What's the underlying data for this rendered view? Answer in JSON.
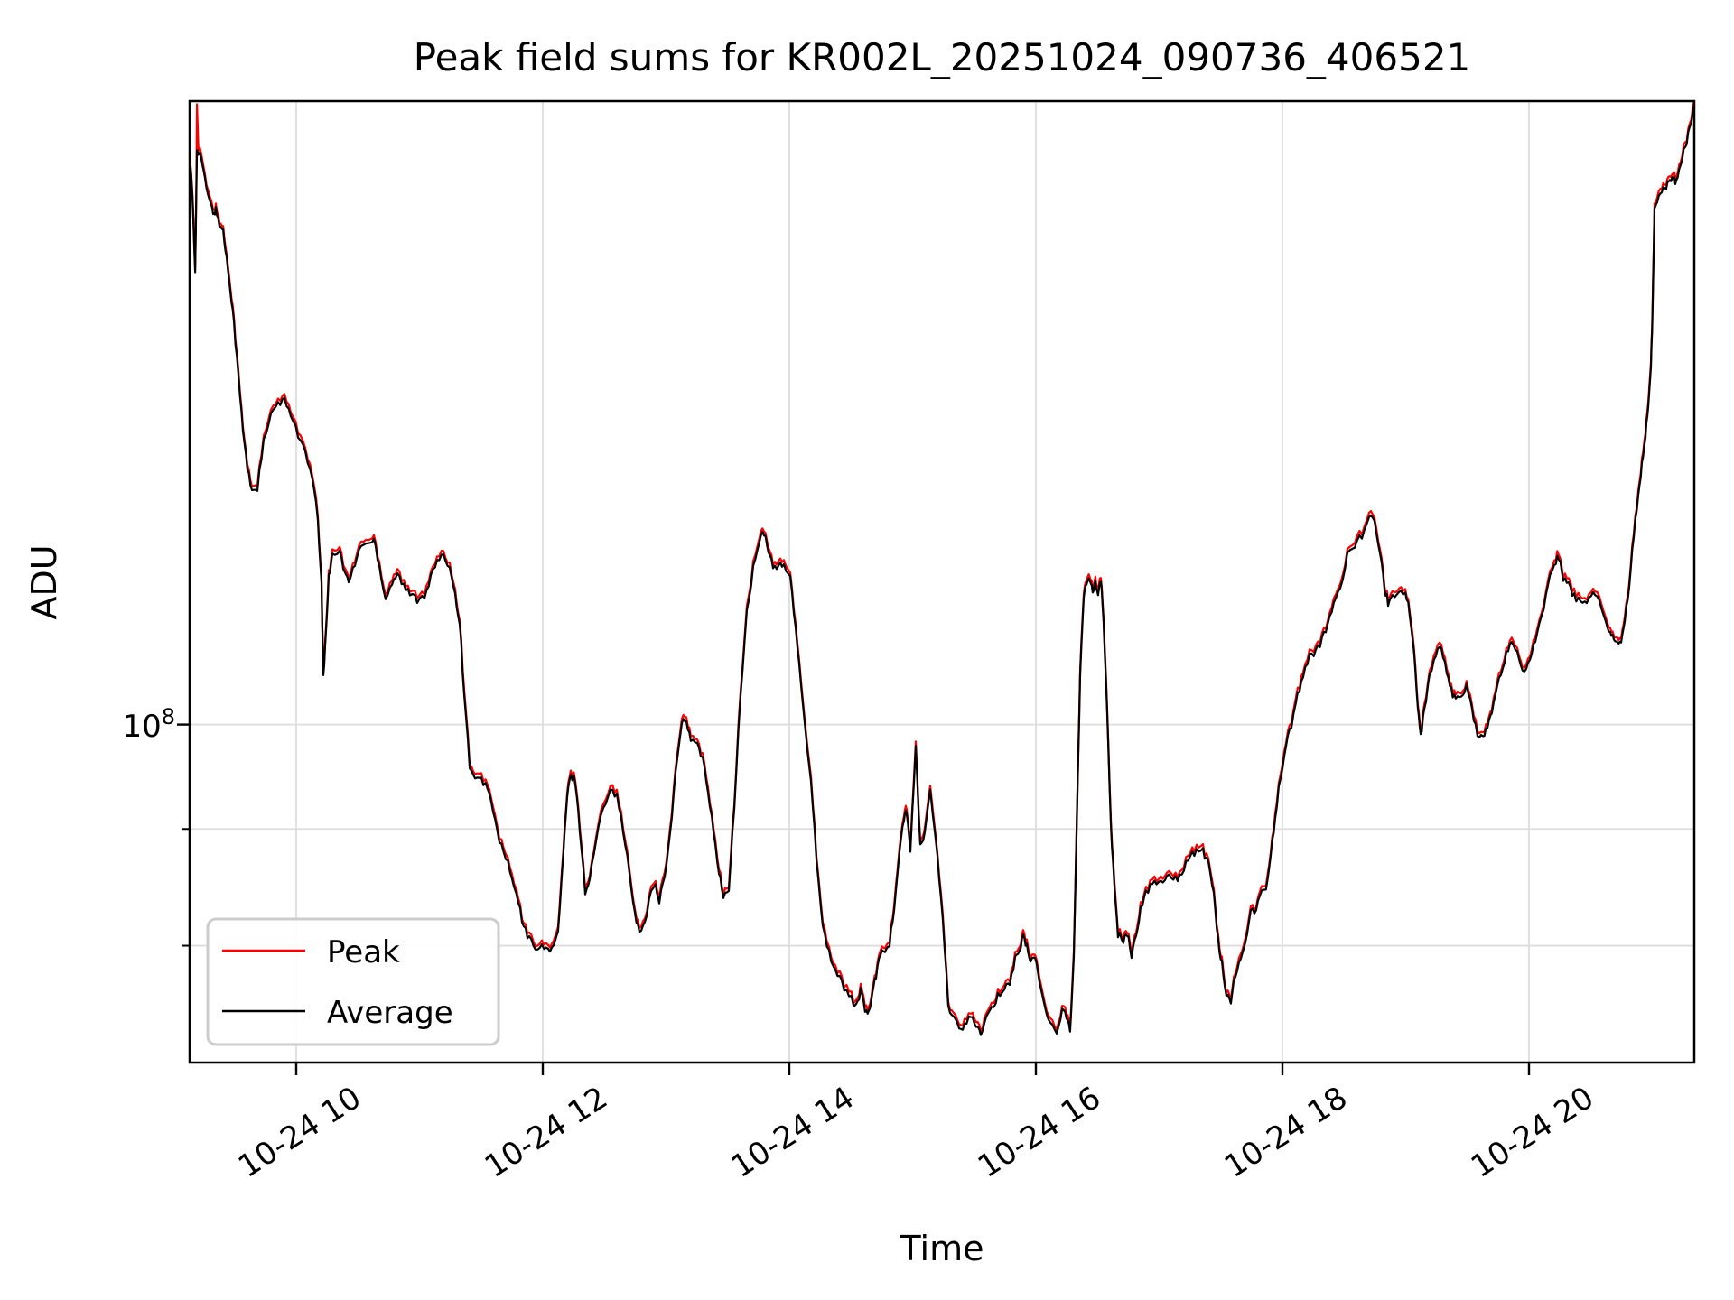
{
  "window": {
    "background": "#ffffff"
  },
  "chart_data": {
    "type": "line",
    "title": "Peak field sums for KR002L_20251024_090736_406521",
    "xlabel": "Time",
    "ylabel": "ADU",
    "yscale": "log",
    "grid": true,
    "grid_color": "#dddddd",
    "frame_color": "#000000",
    "xlim_hours": [
      9.1355,
      21.3407
    ],
    "ylim": [
      71100000.0,
      187600000.0
    ],
    "x_tick_hours": [
      10,
      12,
      14,
      16,
      18,
      20
    ],
    "x_tick_labels": [
      "10-24 10",
      "10-24 12",
      "10-24 14",
      "10-24 16",
      "10-24 18",
      "10-24 20"
    ],
    "x_tick_rotation_deg": -33,
    "y_major_tick": {
      "value": 100000000.0,
      "base": "10",
      "exp": "8"
    },
    "y_minor_gridlines": [
      90000000.0,
      80000000.0
    ],
    "legend": {
      "position": "lower left",
      "border_color": "#cccccc",
      "fill": "#ffffff"
    },
    "noise_pct": 0.2,
    "series": [
      {
        "name": "Peak",
        "color": "#ff0000",
        "derived": "average_times_factor",
        "factor_vs_average": 1.004,
        "spike": {
          "t": 9.195,
          "value": 187000000.0
        }
      },
      {
        "name": "Average",
        "color": "#000000",
        "x_hours": [
          9.129,
          9.158,
          9.18,
          9.195,
          9.231,
          9.26,
          9.297,
          9.326,
          9.348,
          9.377,
          9.407,
          9.436,
          9.465,
          9.495,
          9.531,
          9.568,
          9.604,
          9.641,
          9.685,
          9.736,
          9.795,
          9.853,
          9.905,
          9.956,
          10.015,
          10.073,
          10.132,
          10.176,
          10.205,
          10.22,
          10.242,
          10.264,
          10.293,
          10.352,
          10.396,
          10.425,
          10.476,
          10.527,
          10.586,
          10.63,
          10.674,
          10.725,
          10.777,
          10.821,
          10.872,
          10.923,
          10.982,
          11.04,
          11.092,
          11.143,
          11.194,
          11.245,
          11.289,
          11.326,
          11.363,
          11.407,
          11.451,
          11.502,
          11.553,
          11.597,
          11.648,
          11.7,
          11.751,
          11.802,
          11.846,
          11.89,
          11.941,
          11.993,
          12.044,
          12.088,
          12.124,
          12.168,
          12.198,
          12.227,
          12.264,
          12.3,
          12.344,
          12.381,
          12.432,
          12.491,
          12.549,
          12.601,
          12.652,
          12.703,
          12.747,
          12.784,
          12.828,
          12.879,
          12.916,
          12.945,
          12.989,
          13.033,
          13.077,
          13.128,
          13.165,
          13.201,
          13.253,
          13.297,
          13.341,
          13.385,
          13.429,
          13.465,
          13.509,
          13.553,
          13.604,
          13.656,
          13.707,
          13.758,
          13.795,
          13.831,
          13.868,
          13.912,
          13.956,
          14.007,
          14.051,
          14.095,
          14.176,
          14.22,
          14.271,
          14.322,
          14.374,
          14.425,
          14.484,
          14.542,
          14.579,
          14.615,
          14.645,
          14.674,
          14.703,
          14.74,
          14.776,
          14.813,
          14.85,
          14.894,
          14.93,
          14.952,
          14.982,
          15.026,
          15.062,
          15.099,
          15.143,
          15.201,
          15.245,
          15.289,
          15.333,
          15.377,
          15.421,
          15.472,
          15.516,
          15.553,
          15.597,
          15.641,
          15.692,
          15.744,
          15.788,
          15.832,
          15.868,
          15.897,
          15.927,
          15.956,
          15.993,
          16.029,
          16.073,
          16.117,
          16.169,
          16.213,
          16.249,
          16.278,
          16.308,
          16.337,
          16.359,
          16.388,
          16.41,
          16.439,
          16.461,
          16.483,
          16.505,
          16.527,
          16.549,
          16.579,
          16.608,
          16.637,
          16.666,
          16.71,
          16.74,
          16.776,
          16.813,
          16.85,
          16.893,
          16.945,
          16.996,
          17.047,
          17.098,
          17.15,
          17.201,
          17.252,
          17.303,
          17.355,
          17.399,
          17.443,
          17.479,
          17.509,
          17.545,
          17.582,
          17.618,
          17.662,
          17.699,
          17.743,
          17.787,
          17.831,
          17.867,
          17.904,
          17.941,
          17.985,
          18.029,
          18.073,
          18.124,
          18.168,
          18.22,
          18.271,
          18.322,
          18.366,
          18.417,
          18.469,
          18.527,
          18.586,
          18.645,
          18.703,
          18.747,
          18.791,
          18.828,
          18.857,
          18.894,
          18.945,
          18.996,
          19.033,
          19.069,
          19.099,
          19.121,
          19.15,
          19.194,
          19.245,
          19.289,
          19.333,
          19.37,
          19.406,
          19.45,
          19.494,
          19.538,
          19.582,
          19.626,
          19.663,
          19.699,
          19.743,
          19.787,
          19.831,
          19.875,
          19.919,
          19.963,
          20.007,
          20.051,
          20.102,
          20.154,
          20.205,
          20.242,
          20.278,
          20.322,
          20.366,
          20.418,
          20.469,
          20.52,
          20.571,
          20.623,
          20.659,
          20.689,
          20.718,
          20.747,
          20.777,
          20.813,
          20.85,
          20.886,
          20.916,
          20.945,
          20.967,
          20.989,
          21.003,
          21.018,
          21.04,
          21.077,
          21.113,
          21.143,
          21.172,
          21.194,
          21.23,
          21.267,
          21.304,
          21.34
        ],
        "values": [
          180000000.0,
          170000000.0,
          157800000.0,
          179000000.0,
          177200000.0,
          173000000.0,
          169500000.0,
          167700000.0,
          168000000.0,
          165800000.0,
          164500000.0,
          160000000.0,
          155500000.0,
          150000000.0,
          142000000.0,
          134500000.0,
          129500000.0,
          126700000.0,
          127000000.0,
          133000000.0,
          136500000.0,
          138300000.0,
          138500000.0,
          137000000.0,
          134000000.0,
          131500000.0,
          128000000.0,
          123000000.0,
          115000000.0,
          104700000.0,
          110000000.0,
          116000000.0,
          119000000.0,
          119000000.0,
          116500000.0,
          115500000.0,
          117500000.0,
          120000000.0,
          120000000.0,
          120500000.0,
          117500000.0,
          113500000.0,
          115500000.0,
          116500000.0,
          115000000.0,
          114000000.0,
          113500000.0,
          114000000.0,
          116000000.0,
          118000000.0,
          118300000.0,
          117500000.0,
          114000000.0,
          111000000.0,
          103000000.0,
          96000000.0,
          94500000.0,
          94500000.0,
          94000000.0,
          91500000.0,
          89000000.0,
          87500000.0,
          85500000.0,
          83500000.0,
          81500000.0,
          80500000.0,
          80000000.0,
          79800000.0,
          79700000.0,
          80000000.0,
          81000000.0,
          88000000.0,
          93000000.0,
          95000000.0,
          94500000.0,
          90000000.0,
          84500000.0,
          85500000.0,
          89000000.0,
          92000000.0,
          94000000.0,
          93000000.0,
          90000000.0,
          86000000.0,
          82500000.0,
          81000000.0,
          82000000.0,
          84500000.0,
          85000000.0,
          83700000.0,
          86000000.0,
          89500000.0,
          95000000.0,
          100500000.0,
          100000000.0,
          98500000.0,
          98000000.0,
          96500000.0,
          93500000.0,
          90000000.0,
          86000000.0,
          84200000.0,
          84500000.0,
          92000000.0,
          103000000.0,
          112000000.0,
          117000000.0,
          120500000.0,
          121300000.0,
          119000000.0,
          117500000.0,
          117300000.0,
          117500000.0,
          116000000.0,
          110000000.0,
          104000000.0,
          94500000.0,
          87600000.0,
          81500000.0,
          79500000.0,
          78000000.0,
          77000000.0,
          76200000.0,
          75200000.0,
          76400000.0,
          75000000.0,
          74800000.0,
          76000000.0,
          77700000.0,
          79500000.0,
          79700000.0,
          80200000.0,
          83000000.0,
          88000000.0,
          91000000.0,
          91500000.0,
          88200000.0,
          97500000.0,
          88500000.0,
          89500000.0,
          93700000.0,
          87400000.0,
          82000000.0,
          75500000.0,
          74200000.0,
          73600000.0,
          73800000.0,
          74700000.0,
          73600000.0,
          73300000.0,
          74200000.0,
          75000000.0,
          76000000.0,
          76800000.0,
          77000000.0,
          79000000.0,
          79500000.0,
          80800000.0,
          80000000.0,
          78600000.0,
          79200000.0,
          77000000.0,
          75500000.0,
          73800000.0,
          73300000.0,
          75000000.0,
          74500000.0,
          73600000.0,
          79000000.0,
          93000000.0,
          105000000.0,
          114000000.0,
          115500000.0,
          116000000.0,
          114500000.0,
          115500000.0,
          114000000.0,
          115800000.0,
          111000000.0,
          101000000.0,
          90500000.0,
          85000000.0,
          81000000.0,
          80300000.0,
          81000000.0,
          79300000.0,
          81000000.0,
          83000000.0,
          84500000.0,
          85000000.0,
          85500000.0,
          85500000.0,
          86000000.0,
          85500000.0,
          86500000.0,
          87800000.0,
          88000000.0,
          88000000.0,
          87000000.0,
          84200000.0,
          80500000.0,
          78500000.0,
          76200000.0,
          75600000.0,
          77800000.0,
          79000000.0,
          80500000.0,
          82700000.0,
          83000000.0,
          84500000.0,
          85000000.0,
          87500000.0,
          91000000.0,
          95000000.0,
          98000000.0,
          100000000.0,
          103000000.0,
          105000000.0,
          107000000.0,
          107500000.0,
          109000000.0,
          110500000.0,
          113000000.0,
          115000000.0,
          118500000.0,
          120000000.0,
          121000000.0,
          123500000.0,
          122500000.0,
          119000000.0,
          115000000.0,
          113000000.0,
          114000000.0,
          114500000.0,
          114200000.0,
          112000000.0,
          107500000.0,
          102000000.0,
          98700000.0,
          101500000.0,
          105000000.0,
          107500000.0,
          108500000.0,
          105000000.0,
          103500000.0,
          102500000.0,
          103000000.0,
          104000000.0,
          101500000.0,
          99200000.0,
          98800000.0,
          99500000.0,
          101500000.0,
          104000000.0,
          106000000.0,
          108000000.0,
          108500000.0,
          107000000.0,
          105300000.0,
          107000000.0,
          109000000.0,
          111500000.0,
          115000000.0,
          117800000.0,
          118500000.0,
          116000000.0,
          115000000.0,
          114000000.0,
          113000000.0,
          112800000.0,
          114000000.0,
          113500000.0,
          111000000.0,
          109600000.0,
          109000000.0,
          108300000.0,
          109000000.0,
          111000000.0,
          115000000.0,
          121000000.0,
          126000000.0,
          130000000.0,
          134000000.0,
          138000000.0,
          143000000.0,
          152000000.0,
          168000000.0,
          170000000.0,
          171500000.0,
          172000000.0,
          172700000.0,
          174000000.0,
          172500000.0,
          176500000.0,
          179000000.0,
          182500000.0,
          187000000.0
        ]
      }
    ]
  }
}
